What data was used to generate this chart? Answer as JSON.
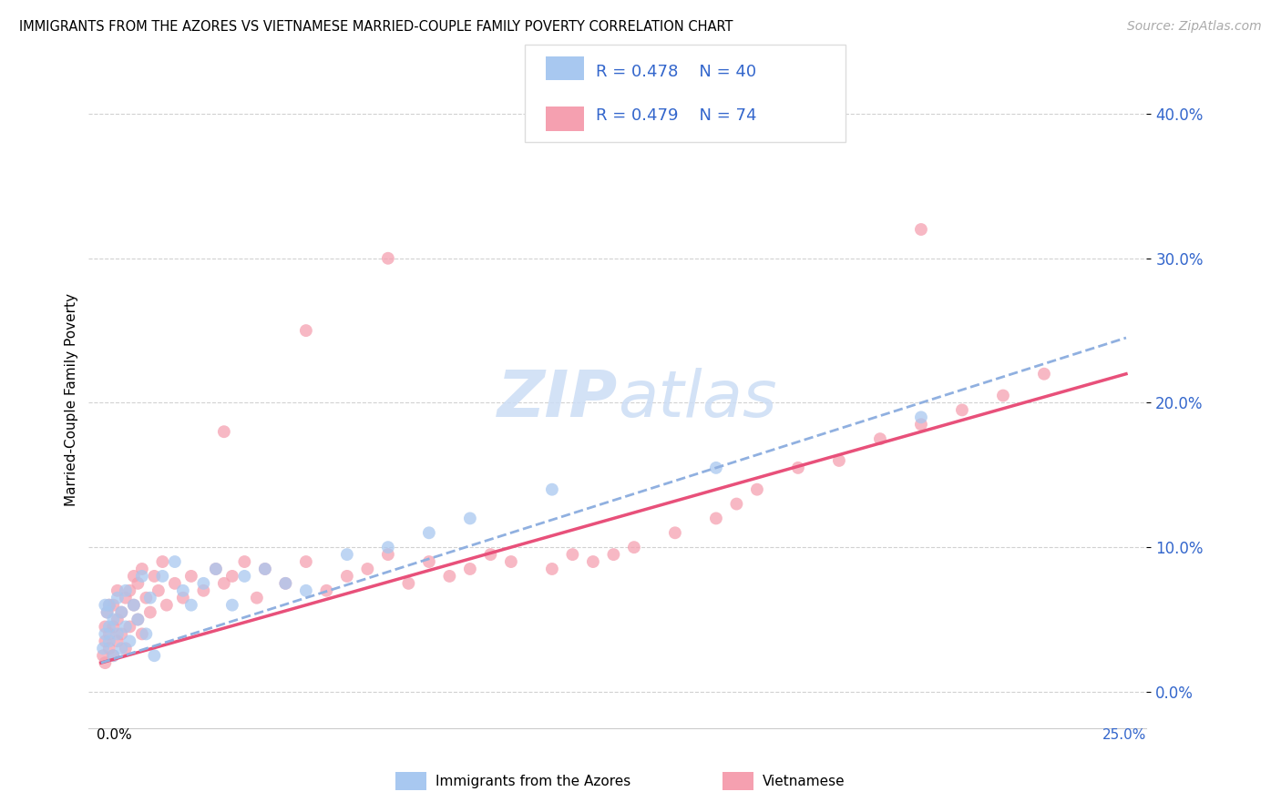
{
  "title": "IMMIGRANTS FROM THE AZORES VS VIETNAMESE MARRIED-COUPLE FAMILY POVERTY CORRELATION CHART",
  "source": "Source: ZipAtlas.com",
  "ylabel": "Married-Couple Family Poverty",
  "ytick_vals": [
    0.0,
    0.1,
    0.2,
    0.3,
    0.4
  ],
  "ytick_labels": [
    "0.0%",
    "10.0%",
    "20.0%",
    "30.0%",
    "40.0%"
  ],
  "xlim": [
    -0.003,
    0.255
  ],
  "ylim": [
    -0.025,
    0.43
  ],
  "color_azores": "#a8c8f0",
  "color_vietnamese": "#f5a0b0",
  "color_line_azores": "#5580c8",
  "color_line_vietnamese": "#e8507a",
  "color_line_azores_dashed": "#90b0e0",
  "legend_text_color": "#3366cc",
  "azores_x": [
    0.0005,
    0.001,
    0.001,
    0.0015,
    0.002,
    0.002,
    0.002,
    0.003,
    0.003,
    0.004,
    0.004,
    0.005,
    0.005,
    0.006,
    0.006,
    0.007,
    0.008,
    0.009,
    0.01,
    0.011,
    0.012,
    0.013,
    0.015,
    0.018,
    0.02,
    0.022,
    0.025,
    0.028,
    0.032,
    0.035,
    0.04,
    0.045,
    0.05,
    0.06,
    0.07,
    0.08,
    0.09,
    0.11,
    0.15,
    0.2
  ],
  "azores_y": [
    0.03,
    0.06,
    0.04,
    0.055,
    0.035,
    0.045,
    0.06,
    0.025,
    0.05,
    0.04,
    0.065,
    0.03,
    0.055,
    0.045,
    0.07,
    0.035,
    0.06,
    0.05,
    0.08,
    0.04,
    0.065,
    0.025,
    0.08,
    0.09,
    0.07,
    0.06,
    0.075,
    0.085,
    0.06,
    0.08,
    0.085,
    0.075,
    0.07,
    0.095,
    0.1,
    0.11,
    0.12,
    0.14,
    0.155,
    0.19
  ],
  "vietnamese_x": [
    0.0005,
    0.001,
    0.001,
    0.001,
    0.0015,
    0.002,
    0.002,
    0.002,
    0.003,
    0.003,
    0.003,
    0.004,
    0.004,
    0.004,
    0.005,
    0.005,
    0.006,
    0.006,
    0.007,
    0.007,
    0.008,
    0.008,
    0.009,
    0.009,
    0.01,
    0.01,
    0.011,
    0.012,
    0.013,
    0.014,
    0.015,
    0.016,
    0.018,
    0.02,
    0.022,
    0.025,
    0.028,
    0.03,
    0.032,
    0.035,
    0.038,
    0.04,
    0.045,
    0.05,
    0.055,
    0.06,
    0.065,
    0.07,
    0.075,
    0.08,
    0.085,
    0.09,
    0.095,
    0.1,
    0.11,
    0.115,
    0.12,
    0.125,
    0.13,
    0.14,
    0.15,
    0.155,
    0.16,
    0.17,
    0.18,
    0.19,
    0.2,
    0.21,
    0.22,
    0.23,
    0.05,
    0.03,
    0.07,
    0.2
  ],
  "vietnamese_y": [
    0.025,
    0.035,
    0.02,
    0.045,
    0.055,
    0.03,
    0.04,
    0.06,
    0.025,
    0.045,
    0.06,
    0.035,
    0.05,
    0.07,
    0.04,
    0.055,
    0.03,
    0.065,
    0.045,
    0.07,
    0.06,
    0.08,
    0.05,
    0.075,
    0.04,
    0.085,
    0.065,
    0.055,
    0.08,
    0.07,
    0.09,
    0.06,
    0.075,
    0.065,
    0.08,
    0.07,
    0.085,
    0.075,
    0.08,
    0.09,
    0.065,
    0.085,
    0.075,
    0.09,
    0.07,
    0.08,
    0.085,
    0.095,
    0.075,
    0.09,
    0.08,
    0.085,
    0.095,
    0.09,
    0.085,
    0.095,
    0.09,
    0.095,
    0.1,
    0.11,
    0.12,
    0.13,
    0.14,
    0.155,
    0.16,
    0.175,
    0.185,
    0.195,
    0.205,
    0.22,
    0.25,
    0.18,
    0.3,
    0.32
  ],
  "az_trend_x0": 0.0,
  "az_trend_y0": 0.02,
  "az_trend_x1": 0.25,
  "az_trend_y1": 0.245,
  "viet_trend_x0": 0.0,
  "viet_trend_y0": 0.02,
  "viet_trend_x1": 0.25,
  "viet_trend_y1": 0.22
}
